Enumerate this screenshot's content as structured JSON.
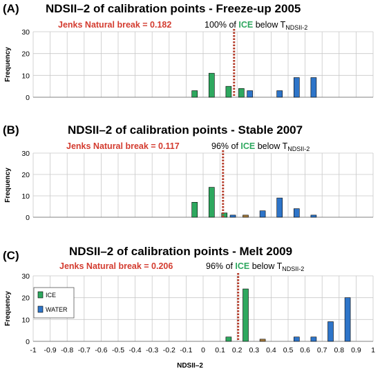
{
  "colors": {
    "ice": "#2ea85f",
    "water": "#2e75c9",
    "overlap": "#a67c3d",
    "threshold": "#b53c2a",
    "jenks_text": "#d33b2f",
    "ice_word": "#2ea85f",
    "grid": "#c8c8c8"
  },
  "legend": {
    "ice_label": "ICE",
    "water_label": "WATER"
  },
  "x_axis_title": "NDSII–2",
  "x_ticks": [
    "-1",
    "-0.9",
    "-0.8",
    "-0.7",
    "-0.6",
    "-0.5",
    "-0.4",
    "-0.3",
    "-0.2",
    "-0.1",
    "0",
    "0.1",
    "0.2",
    "0.3",
    "0.4",
    "0.5",
    "0.6",
    "0.7",
    "0.8",
    "0.9",
    "1"
  ],
  "panels": [
    {
      "letter": "(A)",
      "title": "NDSII–2 of calibration points - Freeze-up 2005",
      "jenks_label": "Jenks Natural break = 0.182",
      "pct_prefix": "100% of",
      "pct_ice": "ICE",
      "pct_below": "below T",
      "pct_sub": "NDSII-2"
    },
    {
      "letter": "(B)",
      "title": "NDSII–2 of calibration points - Stable 2007",
      "jenks_label": "Jenks Natural break = 0.117",
      "pct_prefix": "96% of",
      "pct_ice": "ICE",
      "pct_below": "below T",
      "pct_sub": "NDSII-2"
    },
    {
      "letter": "(C)",
      "title": "NDSII–2 of calibration points - Melt 2009",
      "jenks_label": "Jenks Natural break = 0.206",
      "pct_prefix": "96% of",
      "pct_ice": "ICE",
      "pct_below": "below T",
      "pct_sub": "NDSII-2"
    }
  ],
  "chart_data": [
    {
      "type": "bar",
      "title": "NDSII–2 of calibration points - Freeze-up 2005",
      "xlabel": "",
      "ylabel": "Frequency",
      "ylim": [
        0,
        30
      ],
      "yticks": [
        0,
        10,
        20,
        30
      ],
      "xlim": [
        -1,
        1
      ],
      "grid": true,
      "threshold": 0.182,
      "series": [
        {
          "name": "ICE",
          "x": [
            -0.05,
            0.05,
            0.15,
            0.25
          ],
          "values": [
            3,
            11,
            5,
            4
          ]
        },
        {
          "name": "WATER",
          "x": [
            0.25,
            0.45,
            0.55,
            0.65
          ],
          "values": [
            3,
            3,
            9,
            9
          ]
        }
      ]
    },
    {
      "type": "bar",
      "title": "NDSII–2 of calibration points - Stable 2007",
      "xlabel": "",
      "ylabel": "Frequency",
      "ylim": [
        0,
        30
      ],
      "yticks": [
        0,
        10,
        20,
        30
      ],
      "xlim": [
        -1,
        1
      ],
      "grid": true,
      "threshold": 0.117,
      "series": [
        {
          "name": "ICE",
          "x": [
            -0.05,
            0.05,
            0.15,
            0.25
          ],
          "values": [
            7,
            14,
            2,
            1
          ]
        },
        {
          "name": "WATER",
          "x": [
            0.15,
            0.25,
            0.35,
            0.45,
            0.55,
            0.65
          ],
          "values": [
            1,
            1,
            3,
            9,
            4,
            1
          ]
        }
      ]
    },
    {
      "type": "bar",
      "title": "NDSII–2 of calibration points - Melt 2009",
      "xlabel": "NDSII–2",
      "ylabel": "Frequency",
      "ylim": [
        0,
        30
      ],
      "yticks": [
        0,
        10,
        20,
        30
      ],
      "xlim": [
        -1,
        1
      ],
      "grid": true,
      "threshold": 0.206,
      "legend": "top-left",
      "series": [
        {
          "name": "ICE",
          "x": [
            0.15,
            0.25,
            0.35
          ],
          "values": [
            2,
            24,
            1
          ]
        },
        {
          "name": "WATER",
          "x": [
            0.35,
            0.55,
            0.65,
            0.75,
            0.85
          ],
          "values": [
            1,
            2,
            2,
            9,
            20
          ]
        }
      ]
    }
  ]
}
